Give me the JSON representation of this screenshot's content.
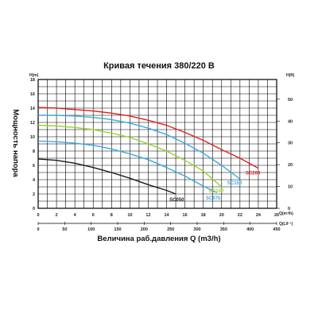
{
  "chart_data": {
    "type": "line",
    "title": "Кривая течения 380/220 В",
    "ylabel": "Мощность напора",
    "xlabel": "Величина раб.давления Q (m3/h)",
    "y_unit_left": "H(m)",
    "y_unit_right": "H(ft)",
    "x_unit_top": "Q(m³/h)",
    "x_unit_bottom": "Q(L/I⁻¹)",
    "xlim": [
      0,
      26
    ],
    "ylim": [
      0,
      18
    ],
    "x_ticks_top": [
      0,
      2,
      4,
      6,
      8,
      10,
      12,
      14,
      16,
      18,
      20,
      22,
      24,
      26
    ],
    "x_ticks_bottom": [
      0,
      50,
      100,
      150,
      200,
      250,
      300,
      350,
      400,
      450
    ],
    "y_ticks_left": [
      0,
      2,
      4,
      6,
      8,
      10,
      12,
      14,
      16,
      18
    ],
    "y_ticks_right": [
      0,
      10,
      20,
      30,
      40,
      50
    ],
    "grid": true,
    "series": [
      {
        "name": "SC050",
        "color": "#1a1a1a",
        "x": [
          0,
          2,
          4,
          6,
          8,
          10,
          12,
          14,
          15
        ],
        "y": [
          6.9,
          6.7,
          6.3,
          5.7,
          5.0,
          4.2,
          3.3,
          2.5,
          2.0
        ]
      },
      {
        "name": "SC075",
        "color": "#3aa9e0",
        "x": [
          0,
          2,
          4,
          6,
          8,
          10,
          12,
          14,
          16,
          18,
          19.5
        ],
        "y": [
          9.4,
          9.3,
          9.1,
          8.8,
          8.3,
          7.6,
          6.8,
          5.7,
          4.5,
          3.1,
          2.2
        ]
      },
      {
        "name": "SC100",
        "color": "#9ad128",
        "x": [
          0,
          2,
          4,
          6,
          8,
          10,
          12,
          14,
          16,
          18,
          20
        ],
        "y": [
          11.6,
          11.5,
          11.3,
          11.0,
          10.5,
          9.9,
          9.0,
          8.0,
          6.7,
          5.2,
          3.0
        ]
      },
      {
        "name": "SC150",
        "color": "#3aa9e0",
        "x": [
          0,
          2,
          4,
          6,
          8,
          10,
          12,
          14,
          16,
          18,
          20,
          22
        ],
        "y": [
          13.0,
          13.0,
          12.9,
          12.7,
          12.4,
          11.9,
          11.2,
          10.3,
          9.1,
          7.7,
          6.0,
          4.1
        ]
      },
      {
        "name": "SC200",
        "color": "#e02020",
        "x": [
          0,
          2,
          4,
          6,
          8,
          10,
          12,
          14,
          16,
          18,
          20,
          22,
          24
        ],
        "y": [
          14.1,
          14.0,
          13.8,
          13.6,
          13.3,
          12.9,
          12.3,
          11.6,
          10.6,
          9.5,
          8.2,
          7.0,
          5.6
        ]
      }
    ],
    "series_labels": [
      "SC050",
      "SC075",
      "SC100",
      "SC150",
      "SC200"
    ]
  }
}
